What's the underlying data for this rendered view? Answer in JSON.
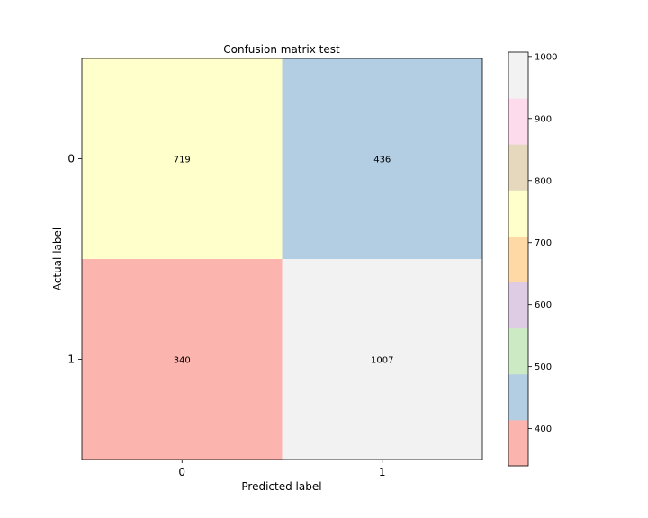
{
  "chart_data": {
    "type": "heatmap",
    "title": "Confusion matrix test",
    "xlabel": "Predicted label",
    "ylabel": "Actual label",
    "x_categories": [
      "0",
      "1"
    ],
    "y_categories": [
      "0",
      "1"
    ],
    "values": [
      [
        719,
        436
      ],
      [
        340,
        1007
      ]
    ],
    "colormap": "Pastel1",
    "colorbar": {
      "range": [
        340,
        1007
      ],
      "ticks": [
        "400",
        "500",
        "600",
        "700",
        "800",
        "900",
        "1000"
      ],
      "tick_values": [
        400,
        500,
        600,
        700,
        800,
        900,
        1000
      ],
      "colors": [
        "#fbb4ae",
        "#b3cde3",
        "#ccebc5",
        "#decbe4",
        "#fed9a6",
        "#ffffcc",
        "#e5d8bd",
        "#fddaec",
        "#f2f2f2"
      ]
    }
  }
}
